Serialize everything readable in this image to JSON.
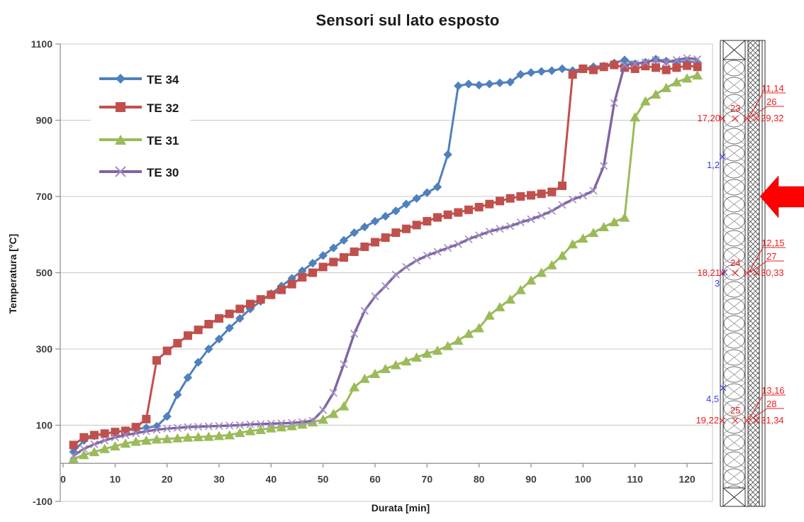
{
  "title": "Sensori sul lato esposto",
  "chart_data": {
    "type": "line",
    "title": "Sensori sul lato esposto",
    "xlabel": "Durata [min]",
    "ylabel": "Temperatura [°C]",
    "xlim": [
      0,
      123
    ],
    "ylim": [
      -100,
      1100
    ],
    "grid": true,
    "legend_position": "top-left-inside",
    "x_ticks": [
      0,
      10,
      20,
      30,
      40,
      50,
      60,
      70,
      80,
      90,
      100,
      110,
      120
    ],
    "y_ticks": [
      -100,
      100,
      300,
      500,
      700,
      900,
      1100
    ],
    "x": [
      2,
      4,
      6,
      8,
      10,
      12,
      14,
      16,
      18,
      20,
      22,
      24,
      26,
      28,
      30,
      32,
      34,
      36,
      38,
      40,
      42,
      44,
      46,
      48,
      50,
      52,
      54,
      56,
      58,
      60,
      62,
      64,
      66,
      68,
      70,
      72,
      74,
      76,
      78,
      80,
      82,
      84,
      86,
      88,
      90,
      92,
      94,
      96,
      98,
      100,
      102,
      104,
      106,
      108,
      110,
      112,
      114,
      116,
      118,
      120,
      122
    ],
    "series": [
      {
        "name": "TE 34",
        "color": "#4F81BD",
        "marker": "diamond",
        "values": [
          30,
          60,
          72,
          78,
          82,
          86,
          90,
          93,
          97,
          123,
          180,
          225,
          265,
          300,
          326,
          355,
          380,
          405,
          425,
          445,
          465,
          485,
          505,
          525,
          545,
          565,
          585,
          605,
          620,
          635,
          648,
          662,
          680,
          695,
          710,
          725,
          810,
          990,
          995,
          992,
          995,
          998,
          1000,
          1020,
          1025,
          1028,
          1030,
          1035,
          1030,
          1035,
          1040,
          1042,
          1050,
          1058,
          1048,
          1052,
          1060,
          1055,
          1052,
          1055,
          1052
        ]
      },
      {
        "name": "TE 32",
        "color": "#C0504D",
        "marker": "square",
        "values": [
          48,
          68,
          74,
          78,
          82,
          85,
          95,
          116,
          270,
          295,
          315,
          335,
          350,
          365,
          380,
          392,
          405,
          418,
          430,
          442,
          455,
          470,
          488,
          500,
          515,
          528,
          540,
          555,
          568,
          580,
          592,
          605,
          615,
          625,
          635,
          645,
          652,
          658,
          665,
          672,
          680,
          688,
          695,
          700,
          703,
          707,
          712,
          728,
          1020,
          1035,
          1032,
          1040,
          1045,
          1038,
          1035,
          1042,
          1038,
          1032,
          1038,
          1043,
          1040
        ]
      },
      {
        "name": "TE 31",
        "color": "#9BBB59",
        "marker": "triangle",
        "values": [
          12,
          22,
          30,
          38,
          45,
          52,
          57,
          60,
          63,
          64,
          66,
          68,
          69,
          70,
          72,
          74,
          80,
          85,
          88,
          92,
          95,
          98,
          102,
          108,
          115,
          130,
          150,
          200,
          222,
          235,
          248,
          258,
          268,
          278,
          288,
          296,
          308,
          322,
          340,
          355,
          388,
          410,
          430,
          455,
          480,
          500,
          520,
          545,
          575,
          590,
          605,
          620,
          633,
          645,
          908,
          950,
          968,
          985,
          1000,
          1010,
          1018
        ]
      },
      {
        "name": "TE 30",
        "color": "#8064A2",
        "marker": "x",
        "values": [
          20,
          38,
          50,
          60,
          68,
          74,
          79,
          84,
          88,
          91,
          93,
          95,
          96,
          97,
          98,
          99,
          100,
          102,
          103,
          104,
          105,
          106,
          108,
          112,
          140,
          185,
          260,
          340,
          400,
          438,
          465,
          495,
          515,
          532,
          545,
          555,
          565,
          575,
          588,
          598,
          608,
          615,
          622,
          632,
          640,
          650,
          662,
          678,
          692,
          702,
          715,
          780,
          945,
          1045,
          1048,
          1052,
          1058,
          1052,
          1058,
          1063,
          1060
        ]
      }
    ]
  },
  "wall_diagram": {
    "groups": [
      {
        "pair_top": "11,14",
        "pair_mid": "26",
        "stud": "23",
        "left": "17,20",
        "right": "29,32",
        "cavity": "1,2"
      },
      {
        "pair_top": "12,15",
        "pair_mid": "27",
        "stud": "24",
        "left": "18,21",
        "right": "30,33",
        "cavity": "3"
      },
      {
        "pair_top": "13,16",
        "pair_mid": "28",
        "stud": "25",
        "left": "19,22",
        "right": "31,34",
        "cavity": "4,5"
      }
    ],
    "label_color_red": "#ee1c1c",
    "label_color_blue": "#3a3ae6",
    "arrow_color": "#ff0000"
  }
}
